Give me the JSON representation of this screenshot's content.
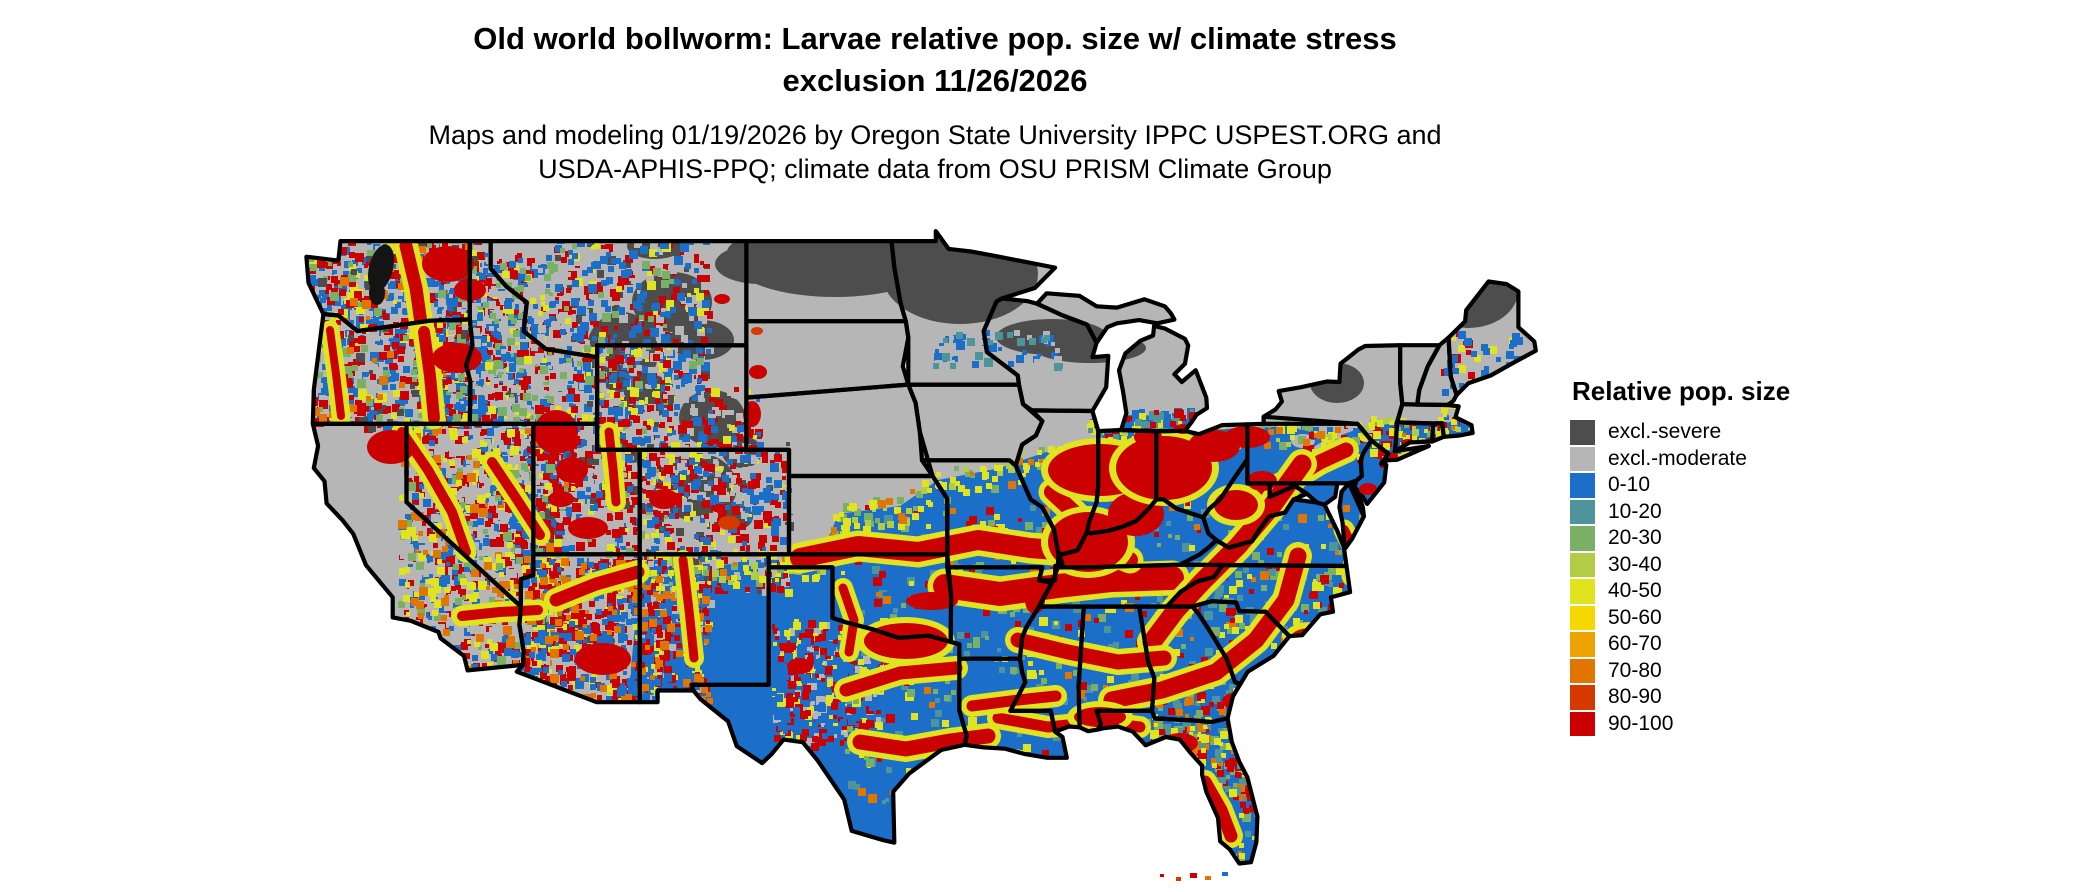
{
  "title": {
    "line1": "Old world bollworm: Larvae relative pop. size w/ climate stress",
    "line2": "exclusion 11/26/2026"
  },
  "subtitle": {
    "line1": "Maps and modeling 01/19/2026 by Oregon State University IPPC USPEST.ORG and",
    "line2": "USDA-APHIS-PPQ; climate data from OSU PRISM Climate Group"
  },
  "legend": {
    "title": "Relative pop. size",
    "items": [
      {
        "label": "excl.-severe",
        "color": "#4d4d4d"
      },
      {
        "label": "excl.-moderate",
        "color": "#b6b6b6"
      },
      {
        "label": "0-10",
        "color": "#1b6fc8"
      },
      {
        "label": "10-20",
        "color": "#4d949b"
      },
      {
        "label": "20-30",
        "color": "#7ab066"
      },
      {
        "label": "30-40",
        "color": "#b3cc45"
      },
      {
        "label": "40-50",
        "color": "#e0e41f"
      },
      {
        "label": "50-60",
        "color": "#f6d700"
      },
      {
        "label": "60-70",
        "color": "#eda403"
      },
      {
        "label": "70-80",
        "color": "#e07600"
      },
      {
        "label": "80-90",
        "color": "#d63900"
      },
      {
        "label": "90-100",
        "color": "#cb0000"
      }
    ]
  },
  "map": {
    "region": "contiguous United States",
    "water_color": "#ffffff",
    "border_color": "#000000"
  }
}
